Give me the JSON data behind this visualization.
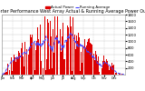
{
  "title": "Solar PV/Inverter Performance West Array Actual & Running Average Power Output",
  "title_fontsize": 3.5,
  "background_color": "#ffffff",
  "bar_color": "#dd0000",
  "line_color": "#4444ff",
  "ylim": [
    0,
    1800
  ],
  "yticks": [
    200,
    400,
    600,
    800,
    1000,
    1200,
    1400,
    1600,
    1800
  ],
  "ytick_fontsize": 2.8,
  "xtick_fontsize": 2.4,
  "legend_fontsize": 2.8,
  "grid_color": "#bbbbbb",
  "num_points": 365,
  "legend_actual": "Actual Power",
  "legend_avg": "Running Average"
}
